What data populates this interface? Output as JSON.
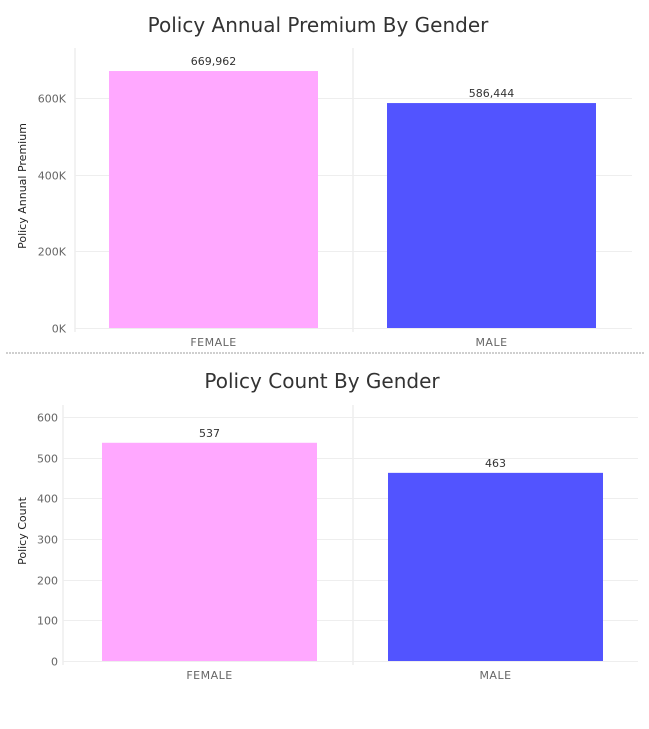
{
  "chart_data": [
    {
      "type": "bar",
      "title": "Policy Annual Premium By Gender",
      "ylabel": "Policy Annual Premium",
      "categories": [
        "FEMALE",
        "MALE"
      ],
      "values": [
        669962,
        586444
      ],
      "value_labels": [
        "669,962",
        "586,444"
      ],
      "colors": [
        "#ffa8ff",
        "#5254ff"
      ],
      "yticks": [
        0,
        200000,
        400000,
        600000
      ],
      "ytick_labels": [
        "0K",
        "200K",
        "400K",
        "600K"
      ],
      "ylim": [
        0,
        730000
      ],
      "grid": true
    },
    {
      "type": "bar",
      "title": "Policy Count By Gender",
      "ylabel": "Policy Count",
      "categories": [
        "FEMALE",
        "MALE"
      ],
      "values": [
        537,
        463
      ],
      "value_labels": [
        "537",
        "463"
      ],
      "colors": [
        "#ffa8ff",
        "#5254ff"
      ],
      "yticks": [
        0,
        100,
        200,
        300,
        400,
        500,
        600
      ],
      "ytick_labels": [
        "0",
        "100",
        "200",
        "300",
        "400",
        "500",
        "600"
      ],
      "ylim": [
        0,
        630
      ],
      "grid": true
    }
  ]
}
